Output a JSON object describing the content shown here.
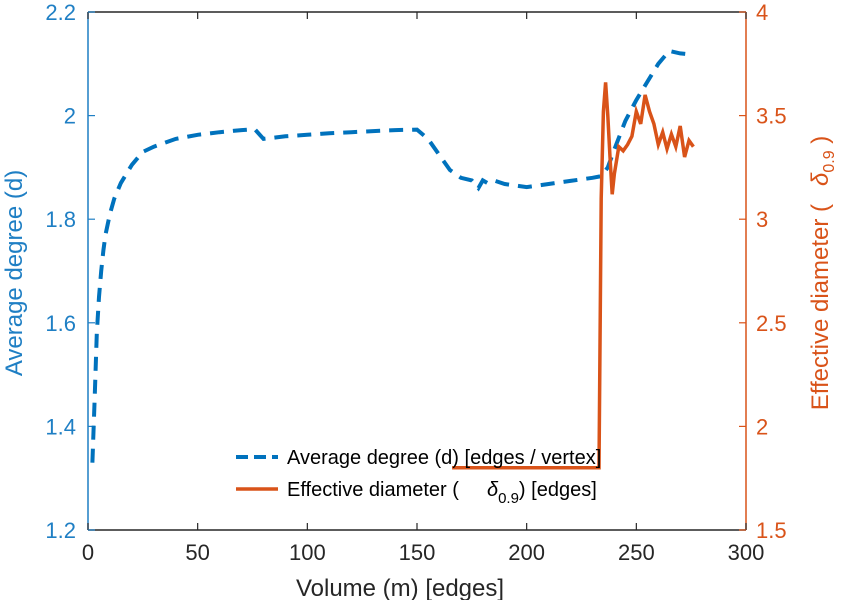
{
  "chart_data": {
    "type": "line",
    "title": "",
    "xlabel": "Volume (m) [edges]",
    "xlim": [
      0,
      300
    ],
    "xticks": [
      "0",
      "50",
      "100",
      "150",
      "200",
      "250",
      "300"
    ],
    "ylabel_left": "Average degree (d)",
    "ylim_left": [
      1.2,
      2.2
    ],
    "yticks_left": [
      "1.2",
      "1.4",
      "1.6",
      "1.8",
      "2",
      "2.2"
    ],
    "ylabel_right_text": "Effective diameter (",
    "ylabel_right_symbol": "δ",
    "ylabel_right_subscript": "0.9",
    "ylabel_right_close": " )",
    "ylim_right": [
      1.5,
      4
    ],
    "yticks_right": [
      "1.5",
      "2",
      "2.5",
      "3",
      "3.5",
      "4"
    ],
    "grid": false,
    "legend_position": "bottom-center",
    "colors": {
      "left_axis": "#1f7fc4",
      "right_axis": "#d95319",
      "avg_line": "#0072bd",
      "diam_line": "#d95319"
    },
    "series": [
      {
        "name": "Average degree (d) [edges / vertex]",
        "axis": "left",
        "style": "dashed",
        "x": [
          2,
          3,
          4,
          5,
          6,
          7,
          8,
          10,
          12,
          15,
          20,
          25,
          30,
          40,
          50,
          60,
          70,
          76,
          80,
          90,
          100,
          110,
          120,
          130,
          140,
          150,
          155,
          160,
          165,
          170,
          175,
          178,
          180,
          182,
          185,
          190,
          200,
          210,
          220,
          230,
          234,
          237,
          240,
          245,
          250,
          255,
          260,
          265,
          270,
          275
        ],
        "y": [
          1.33,
          1.45,
          1.58,
          1.65,
          1.7,
          1.74,
          1.77,
          1.81,
          1.84,
          1.87,
          1.905,
          1.93,
          1.94,
          1.955,
          1.963,
          1.968,
          1.972,
          1.974,
          1.955,
          1.96,
          1.963,
          1.966,
          1.968,
          1.97,
          1.972,
          1.973,
          1.955,
          1.925,
          1.895,
          1.88,
          1.875,
          1.86,
          1.875,
          1.87,
          1.875,
          1.868,
          1.862,
          1.868,
          1.874,
          1.88,
          1.883,
          1.9,
          1.935,
          1.99,
          2.03,
          2.065,
          2.1,
          2.125,
          2.12,
          2.118
        ]
      },
      {
        "name_text": "Effective diameter (",
        "name_symbol": "δ",
        "name_subscript": "0.9",
        "name_close": ") [edges]",
        "axis": "right",
        "style": "solid",
        "x": [
          166,
          200,
          233,
          234,
          235,
          236,
          237,
          238,
          239,
          240,
          242,
          244,
          246,
          248,
          250,
          252,
          254,
          256,
          258,
          260,
          262,
          264,
          266,
          268,
          270,
          272,
          274,
          276
        ],
        "y": [
          1.8,
          1.8,
          1.8,
          3.1,
          3.52,
          3.66,
          3.5,
          3.3,
          3.12,
          3.22,
          3.35,
          3.33,
          3.36,
          3.4,
          3.52,
          3.46,
          3.6,
          3.52,
          3.46,
          3.36,
          3.42,
          3.34,
          3.41,
          3.35,
          3.45,
          3.3,
          3.38,
          3.35
        ]
      }
    ]
  }
}
